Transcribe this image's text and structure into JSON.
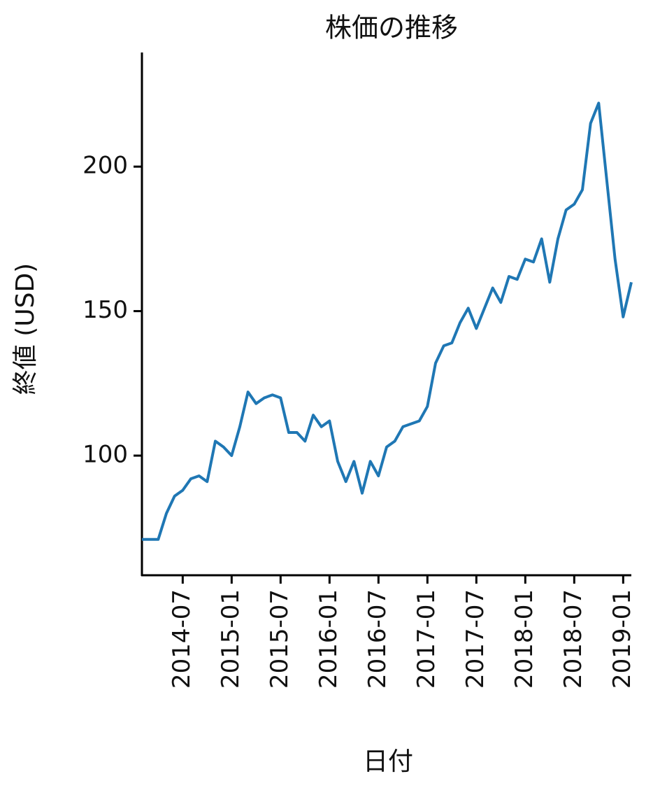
{
  "chart_data": {
    "type": "line",
    "title": "株価の推移",
    "x_label": "日付",
    "y_label": "終値 (USD)",
    "x": [
      "2014-02",
      "2014-03",
      "2014-04",
      "2014-05",
      "2014-06",
      "2014-07",
      "2014-08",
      "2014-09",
      "2014-10",
      "2014-11",
      "2014-12",
      "2015-01",
      "2015-02",
      "2015-03",
      "2015-04",
      "2015-05",
      "2015-06",
      "2015-07",
      "2015-08",
      "2015-09",
      "2015-10",
      "2015-11",
      "2015-12",
      "2016-01",
      "2016-02",
      "2016-03",
      "2016-04",
      "2016-05",
      "2016-06",
      "2016-07",
      "2016-08",
      "2016-09",
      "2016-10",
      "2016-11",
      "2016-12",
      "2017-01",
      "2017-02",
      "2017-03",
      "2017-04",
      "2017-05",
      "2017-06",
      "2017-07",
      "2017-08",
      "2017-09",
      "2017-10",
      "2017-11",
      "2017-12",
      "2018-01",
      "2018-02",
      "2018-03",
      "2018-04",
      "2018-05",
      "2018-06",
      "2018-07",
      "2018-08",
      "2018-09",
      "2018-10",
      "2018-11",
      "2018-12",
      "2019-01",
      "2019-02"
    ],
    "series": [
      {
        "name": "終値",
        "color": "#1f77b4",
        "values": [
          71,
          71,
          71,
          80,
          86,
          88,
          92,
          93,
          91,
          105,
          103,
          100,
          110,
          122,
          118,
          120,
          121,
          120,
          108,
          108,
          105,
          114,
          110,
          112,
          98,
          91,
          98,
          87,
          98,
          93,
          103,
          105,
          110,
          111,
          112,
          117,
          132,
          138,
          139,
          146,
          151,
          144,
          151,
          158,
          153,
          162,
          161,
          168,
          167,
          175,
          160,
          175,
          185,
          187,
          192,
          215,
          222,
          195,
          168,
          148,
          160
        ]
      }
    ],
    "xlim": [
      "2014-02",
      "2019-02"
    ],
    "xticks": [
      "2014-07",
      "2015-01",
      "2015-07",
      "2016-01",
      "2016-07",
      "2017-01",
      "2017-07",
      "2018-01",
      "2018-07",
      "2019-01"
    ],
    "ylim": [
      58.6,
      239.5
    ],
    "yticks": [
      100,
      150,
      200
    ],
    "grid": false
  }
}
